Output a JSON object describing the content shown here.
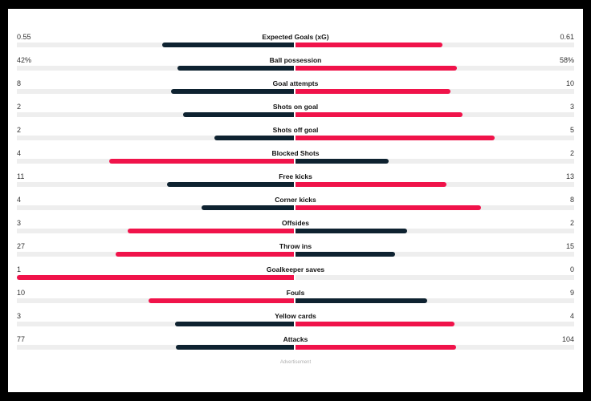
{
  "stats": [
    {
      "label": "Expected Goals (xG)",
      "left": "0.55",
      "right": "0.61",
      "lv": 0.55,
      "rv": 0.61
    },
    {
      "label": "Ball possession",
      "left": "42%",
      "right": "58%",
      "lv": 42,
      "rv": 58
    },
    {
      "label": "Goal attempts",
      "left": "8",
      "right": "10",
      "lv": 8,
      "rv": 10
    },
    {
      "label": "Shots on goal",
      "left": "2",
      "right": "3",
      "lv": 2,
      "rv": 3
    },
    {
      "label": "Shots off goal",
      "left": "2",
      "right": "5",
      "lv": 2,
      "rv": 5
    },
    {
      "label": "Blocked Shots",
      "left": "4",
      "right": "2",
      "lv": 4,
      "rv": 2
    },
    {
      "label": "Free kicks",
      "left": "11",
      "right": "13",
      "lv": 11,
      "rv": 13
    },
    {
      "label": "Corner kicks",
      "left": "4",
      "right": "8",
      "lv": 4,
      "rv": 8
    },
    {
      "label": "Offsides",
      "left": "3",
      "right": "2",
      "lv": 3,
      "rv": 2
    },
    {
      "label": "Throw ins",
      "left": "27",
      "right": "15",
      "lv": 27,
      "rv": 15
    },
    {
      "label": "Goalkeeper saves",
      "left": "1",
      "right": "0",
      "lv": 1,
      "rv": 0
    },
    {
      "label": "Fouls",
      "left": "10",
      "right": "9",
      "lv": 10,
      "rv": 9
    },
    {
      "label": "Yellow cards",
      "left": "3",
      "right": "4",
      "lv": 3,
      "rv": 4
    },
    {
      "label": "Attacks",
      "left": "77",
      "right": "104",
      "lv": 77,
      "rv": 104
    }
  ],
  "colors": {
    "leading": "#f0134a",
    "trailing": "#0e2230",
    "track": "#eeeeee"
  },
  "ad_label": "Advertisement"
}
